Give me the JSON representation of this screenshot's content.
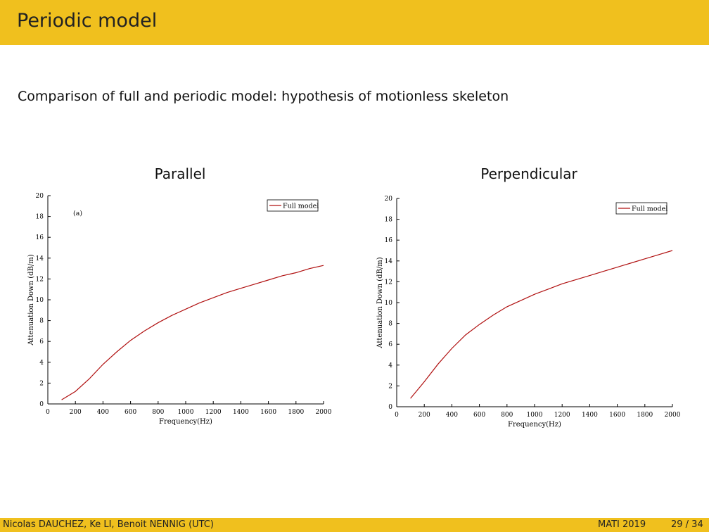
{
  "header": {
    "title": "Periodic model"
  },
  "subtitle": "Comparison of full and periodic model: hypothesis of motionless skeleton",
  "panels": {
    "left_title": "Parallel",
    "right_title": "Perpendicular"
  },
  "footer": {
    "authors": "Nicolas DAUCHEZ, Ke LI, Benoit NENNIG (UTC)",
    "conference": "MATI 2019",
    "page": "29 / 34"
  },
  "colors": {
    "header_bg": "#f0c01e",
    "line": "#b01010"
  },
  "chart_data": [
    {
      "type": "line",
      "title": "Parallel",
      "xlabel": "Frequency(Hz)",
      "ylabel": "Attenuation Down (dB/m)",
      "xlim": [
        0,
        2000
      ],
      "ylim": [
        0,
        20
      ],
      "xticks": [
        0,
        200,
        400,
        600,
        800,
        1000,
        1200,
        1400,
        1600,
        1800,
        2000
      ],
      "yticks": [
        0,
        2,
        4,
        6,
        8,
        10,
        12,
        14,
        16,
        18,
        20
      ],
      "annotation": "(a)",
      "grid": false,
      "legend_position": "top-right",
      "series": [
        {
          "name": "Full model",
          "x": [
            100,
            200,
            300,
            400,
            500,
            600,
            700,
            800,
            900,
            1000,
            1100,
            1200,
            1300,
            1400,
            1500,
            1600,
            1700,
            1800,
            1900,
            2000
          ],
          "y": [
            0.4,
            1.2,
            2.4,
            3.8,
            5.0,
            6.1,
            7.0,
            7.8,
            8.5,
            9.1,
            9.7,
            10.2,
            10.7,
            11.1,
            11.5,
            11.9,
            12.3,
            12.6,
            13.0,
            13.3
          ]
        }
      ]
    },
    {
      "type": "line",
      "title": "Perpendicular",
      "xlabel": "Frequency(Hz)",
      "ylabel": "Attenuation Down (dB/m)",
      "xlim": [
        0,
        2000
      ],
      "ylim": [
        0,
        20
      ],
      "xticks": [
        0,
        200,
        400,
        600,
        800,
        1000,
        1200,
        1400,
        1600,
        1800,
        2000
      ],
      "yticks": [
        0,
        2,
        4,
        6,
        8,
        10,
        12,
        14,
        16,
        18,
        20
      ],
      "grid": false,
      "legend_position": "top-right",
      "series": [
        {
          "name": "Full model",
          "x": [
            100,
            200,
            300,
            400,
            500,
            600,
            700,
            800,
            900,
            1000,
            1100,
            1200,
            1300,
            1400,
            1500,
            1600,
            1700,
            1800,
            1900,
            2000
          ],
          "y": [
            0.8,
            2.4,
            4.1,
            5.6,
            6.9,
            7.9,
            8.8,
            9.6,
            10.2,
            10.8,
            11.3,
            11.8,
            12.2,
            12.6,
            13.0,
            13.4,
            13.8,
            14.2,
            14.6,
            15.0
          ]
        }
      ]
    }
  ]
}
